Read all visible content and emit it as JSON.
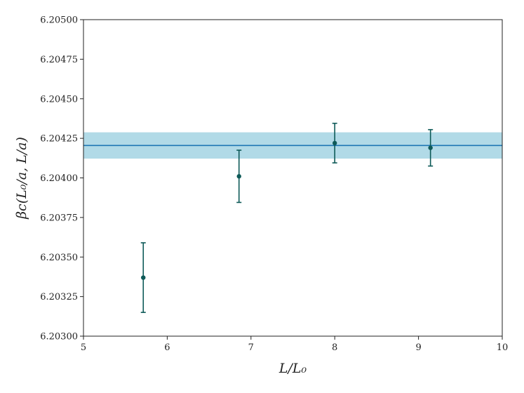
{
  "chart_data": {
    "type": "scatter",
    "title": "",
    "xlabel": "L/L₀",
    "ylabel": "βc(L₀/a, L/a)",
    "xlim": [
      5,
      10
    ],
    "ylim": [
      6.203,
      6.205
    ],
    "grid": false,
    "x_ticks": [
      5,
      6,
      7,
      8,
      9,
      10
    ],
    "x_tick_labels": [
      "5",
      "6",
      "7",
      "8",
      "9",
      "10"
    ],
    "y_ticks": [
      6.203,
      6.20325,
      6.2035,
      6.20375,
      6.204,
      6.20425,
      6.2045,
      6.20475,
      6.205
    ],
    "y_tick_labels": [
      "6.20300",
      "6.20325",
      "6.20350",
      "6.20375",
      "6.20400",
      "6.20425",
      "6.20450",
      "6.20475",
      "6.20500"
    ],
    "series": [
      {
        "x": [
          5.714,
          6.857,
          8.0,
          9.143
        ],
        "y": [
          6.20337,
          6.20401,
          6.20422,
          6.20419
        ],
        "yerr": [
          0.00022,
          0.000165,
          0.000125,
          0.000115
        ],
        "color": "#0e5a58"
      }
    ],
    "fit": {
      "value": 6.204205,
      "lower": 6.204122,
      "upper": 6.204288,
      "line_color": "#1f77b4",
      "band_color": "#add8e6"
    }
  }
}
